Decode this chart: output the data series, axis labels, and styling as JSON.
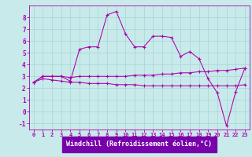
{
  "title": "",
  "xlabel": "Windchill (Refroidissement éolien,°C)",
  "background_color": "#c8eaea",
  "grid_color": "#a8d4d4",
  "line_color": "#aa00aa",
  "xlabel_bg": "#7700aa",
  "x": [
    0,
    1,
    2,
    3,
    4,
    5,
    6,
    7,
    8,
    9,
    10,
    11,
    12,
    13,
    14,
    15,
    16,
    17,
    18,
    19,
    20,
    21,
    22,
    23
  ],
  "y_main": [
    2.5,
    3.0,
    3.0,
    3.0,
    2.6,
    5.3,
    5.5,
    5.5,
    8.2,
    8.5,
    6.6,
    5.5,
    5.5,
    6.4,
    6.4,
    6.3,
    4.7,
    5.1,
    4.5,
    2.8,
    1.6,
    -1.2,
    1.7,
    3.7
  ],
  "y_upper": [
    2.5,
    3.0,
    3.0,
    3.0,
    2.9,
    3.0,
    3.0,
    3.0,
    3.0,
    3.0,
    3.0,
    3.1,
    3.1,
    3.1,
    3.2,
    3.2,
    3.3,
    3.3,
    3.4,
    3.4,
    3.5,
    3.5,
    3.6,
    3.7
  ],
  "y_lower": [
    2.5,
    2.8,
    2.7,
    2.6,
    2.5,
    2.5,
    2.4,
    2.4,
    2.4,
    2.3,
    2.3,
    2.3,
    2.2,
    2.2,
    2.2,
    2.2,
    2.2,
    2.2,
    2.2,
    2.2,
    2.2,
    2.2,
    2.2,
    2.3
  ],
  "ylim": [
    -1.5,
    9.0
  ],
  "xlim": [
    -0.5,
    23.5
  ],
  "yticks": [
    -1,
    0,
    1,
    2,
    3,
    4,
    5,
    6,
    7,
    8
  ],
  "xticks": [
    0,
    1,
    2,
    3,
    4,
    5,
    6,
    7,
    8,
    9,
    10,
    11,
    12,
    13,
    14,
    15,
    16,
    17,
    18,
    19,
    20,
    21,
    22,
    23
  ],
  "tick_fontsize": 5.5,
  "xlabel_fontsize": 6.0
}
